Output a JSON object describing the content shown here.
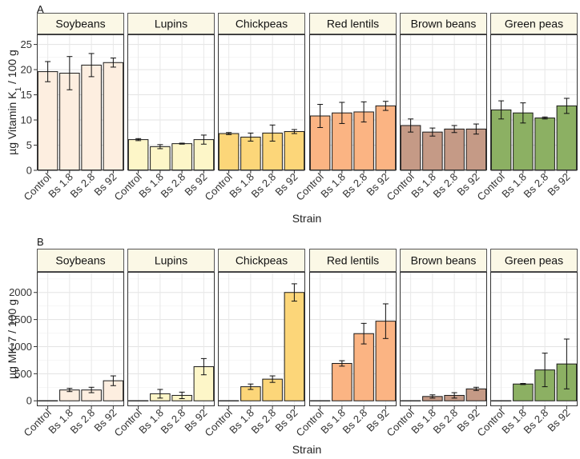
{
  "chart_data": [
    {
      "label": "A",
      "type": "bar",
      "ylabel_prefix": "µg Vitamin K",
      "ylabel_sub": "1",
      "ylabel_suffix": " / 100 g",
      "xlabel": "Strain",
      "ylim": [
        0,
        27
      ],
      "yticks": [
        0,
        5,
        10,
        15,
        20,
        25
      ],
      "categories": [
        "Control",
        "Bs 1.8",
        "Bs 2.8",
        "Bs 92"
      ],
      "facets": [
        {
          "name": "Soybeans",
          "color": "#fdeee0",
          "values": [
            19.6,
            19.3,
            20.9,
            21.4
          ],
          "errors": [
            2.0,
            3.3,
            2.3,
            0.9
          ]
        },
        {
          "name": "Lupins",
          "color": "#fdf6c8",
          "values": [
            6.1,
            4.7,
            5.3,
            6.1
          ],
          "errors": [
            0.2,
            0.4,
            0.1,
            0.9
          ]
        },
        {
          "name": "Chickpeas",
          "color": "#fcd679",
          "values": [
            7.3,
            6.6,
            7.4,
            7.7
          ],
          "errors": [
            0.2,
            0.8,
            1.6,
            0.4
          ]
        },
        {
          "name": "Red lentils",
          "color": "#fbb483",
          "values": [
            10.8,
            11.4,
            11.6,
            12.8
          ],
          "errors": [
            2.3,
            2.1,
            2.0,
            0.9
          ]
        },
        {
          "name": "Brown beans",
          "color": "#c59a86",
          "values": [
            8.9,
            7.6,
            8.2,
            8.2
          ],
          "errors": [
            1.3,
            0.8,
            0.7,
            1.0
          ]
        },
        {
          "name": "Green peas",
          "color": "#8cb063",
          "values": [
            12.0,
            11.4,
            10.4,
            12.8
          ],
          "errors": [
            1.8,
            2.0,
            0.2,
            1.5
          ]
        }
      ]
    },
    {
      "label": "B",
      "type": "bar",
      "ylabel": "µg MK-7 / 100 g",
      "xlabel": "Strain",
      "ylim": [
        -100,
        2380
      ],
      "yticks": [
        0,
        500,
        1000,
        1500,
        2000
      ],
      "categories": [
        "Control",
        "Bs 1.8",
        "Bs 2.8",
        "Bs 92"
      ],
      "facets": [
        {
          "name": "Soybeans",
          "color": "#fdeee0",
          "values": [
            0,
            200,
            200,
            370
          ],
          "errors": [
            0,
            30,
            50,
            90
          ]
        },
        {
          "name": "Lupins",
          "color": "#fdf6c8",
          "values": [
            0,
            130,
            100,
            630
          ],
          "errors": [
            0,
            80,
            60,
            150
          ]
        },
        {
          "name": "Chickpeas",
          "color": "#fcd679",
          "values": [
            0,
            260,
            400,
            2000
          ],
          "errors": [
            0,
            50,
            60,
            160
          ]
        },
        {
          "name": "Red lentils",
          "color": "#fbb483",
          "values": [
            0,
            690,
            1240,
            1470
          ],
          "errors": [
            0,
            50,
            190,
            320
          ]
        },
        {
          "name": "Brown beans",
          "color": "#c59a86",
          "values": [
            0,
            80,
            100,
            220
          ],
          "errors": [
            0,
            30,
            50,
            30
          ]
        },
        {
          "name": "Green peas",
          "color": "#8cb063",
          "values": [
            0,
            310,
            570,
            680
          ],
          "errors": [
            0,
            10,
            310,
            460
          ]
        }
      ]
    }
  ]
}
